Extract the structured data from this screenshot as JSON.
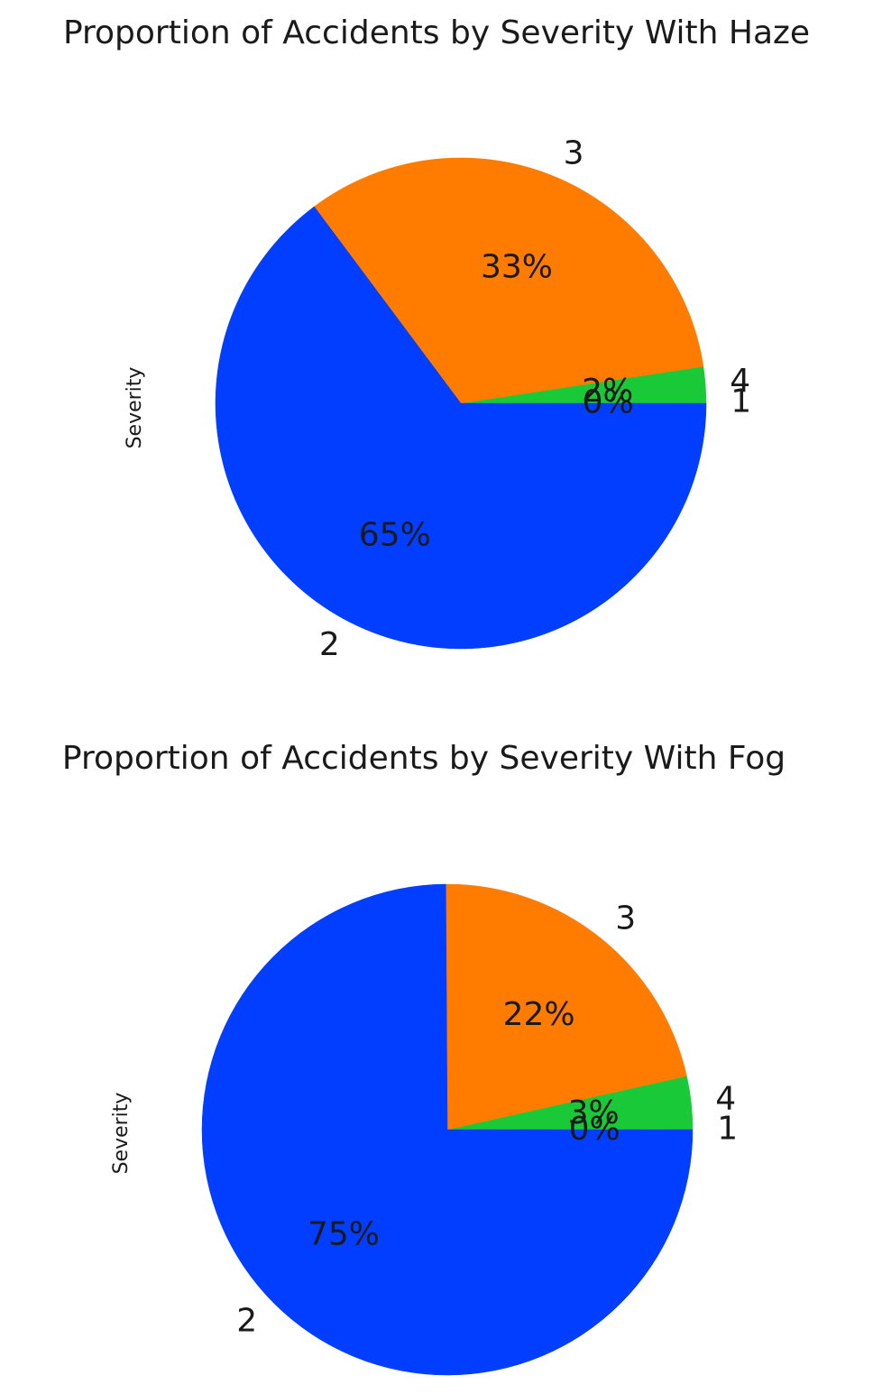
{
  "chart_data": [
    {
      "type": "pie",
      "title": "Proportion of Accidents by Severity With Haze",
      "ylabel": "Severity",
      "legend": "none",
      "categories": [
        "1",
        "4",
        "3",
        "2"
      ],
      "values": [
        0.2,
        2.2,
        32.8,
        64.8
      ],
      "percent_labels": [
        "0%",
        "2%",
        "33%",
        "65%"
      ],
      "colors": [
        "#1ac938",
        "#1ac938",
        "#ff7c00",
        "#023eff"
      ]
    },
    {
      "type": "pie",
      "title": "Proportion of Accidents by Severity With Fog",
      "ylabel": "Severity",
      "legend": "none",
      "categories": [
        "1",
        "4",
        "3",
        "2"
      ],
      "values": [
        0.1,
        3.4,
        21.6,
        74.9
      ],
      "percent_labels": [
        "0%",
        "3%",
        "22%",
        "75%"
      ],
      "colors": [
        "#1ac938",
        "#1ac938",
        "#ff7c00",
        "#023eff"
      ]
    }
  ]
}
